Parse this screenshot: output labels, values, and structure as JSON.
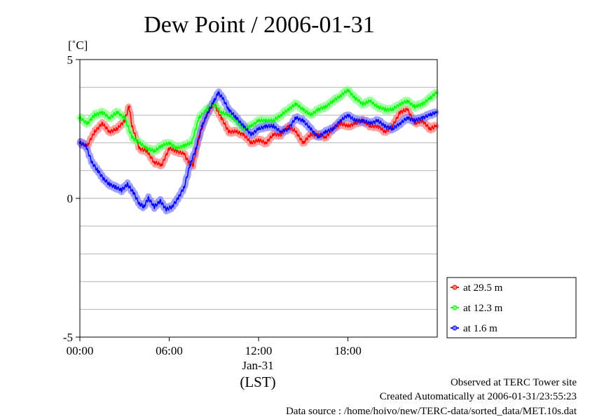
{
  "chart_data": {
    "type": "line",
    "title": "Dew Point / 2006-01-31",
    "ylabel": "[˚C]",
    "ylim": [
      -5,
      5
    ],
    "yticks": [
      {
        "value": 5,
        "label": "5"
      },
      {
        "value": 0,
        "label": "0"
      },
      {
        "value": -5,
        "label": "-5"
      }
    ],
    "xlim": [
      0,
      24
    ],
    "xticks": [
      {
        "value": 0,
        "label": "00:00"
      },
      {
        "value": 6,
        "label": "06:00"
      },
      {
        "value": 12,
        "label": "12:00"
      },
      {
        "value": 18,
        "label": "18:00"
      }
    ],
    "xdate_label": "Jan-31",
    "xlabel": "(LST)",
    "grid": true,
    "legend_position": "lower-right-outside",
    "series": [
      {
        "name": "at 29.5 m",
        "color": "#ff0000",
        "band_color": "#ff8080",
        "x": [
          0,
          0.5,
          1,
          1.5,
          2,
          2.5,
          3,
          3.3,
          3.5,
          4,
          4.5,
          5,
          5.5,
          6,
          6.5,
          7,
          7.3,
          7.6,
          8,
          8.5,
          9,
          9.5,
          10,
          10.5,
          11,
          11.5,
          12,
          12.5,
          13,
          13.5,
          14,
          14.5,
          15,
          15.5,
          16,
          16.5,
          17,
          17.5,
          18,
          18.5,
          19,
          19.5,
          20,
          20.5,
          21,
          21.5,
          22,
          22.5,
          23,
          23.5,
          23.9
        ],
        "y": [
          2.0,
          1.9,
          2.4,
          2.7,
          2.4,
          2.5,
          2.8,
          3.3,
          2.6,
          1.8,
          1.7,
          1.3,
          1.2,
          1.8,
          1.7,
          1.6,
          1.3,
          1.2,
          2.2,
          3.0,
          3.4,
          2.9,
          2.4,
          2.4,
          2.3,
          2.0,
          2.1,
          2.0,
          2.3,
          2.3,
          2.6,
          2.4,
          2.0,
          2.3,
          2.3,
          2.2,
          2.5,
          2.7,
          2.6,
          2.7,
          2.8,
          2.6,
          2.6,
          2.4,
          2.6,
          3.1,
          3.2,
          2.7,
          2.8,
          2.5,
          2.6
        ]
      },
      {
        "name": "at 12.3 m",
        "color": "#00ff00",
        "band_color": "#80ff80",
        "x": [
          0,
          0.5,
          1,
          1.5,
          2,
          2.5,
          3,
          3.5,
          4,
          4.5,
          5,
          5.5,
          6,
          6.5,
          7,
          7.5,
          8,
          8.5,
          9,
          9.5,
          10,
          10.5,
          11,
          11.5,
          12,
          12.5,
          13,
          13.5,
          14,
          14.5,
          15,
          15.5,
          16,
          16.5,
          17,
          17.5,
          18,
          18.5,
          19,
          19.5,
          20,
          20.5,
          21,
          21.5,
          22,
          22.5,
          23,
          23.5,
          23.9
        ],
        "y": [
          2.9,
          2.7,
          3.0,
          3.1,
          2.9,
          3.1,
          2.9,
          2.2,
          2.0,
          1.8,
          1.7,
          1.9,
          2.0,
          1.8,
          1.9,
          2.0,
          2.9,
          3.2,
          3.4,
          3.1,
          3.0,
          2.8,
          2.5,
          2.6,
          2.8,
          2.8,
          2.8,
          3.0,
          3.2,
          3.4,
          3.2,
          3.0,
          3.2,
          3.3,
          3.5,
          3.7,
          3.9,
          3.6,
          3.4,
          3.5,
          3.3,
          3.2,
          3.2,
          3.4,
          3.5,
          3.3,
          3.4,
          3.6,
          3.8
        ]
      },
      {
        "name": "at 1.6 m",
        "color": "#0000ff",
        "band_color": "#8080ff",
        "x": [
          0,
          0.4,
          0.8,
          1.2,
          1.6,
          2,
          2.4,
          2.8,
          3.2,
          3.6,
          4,
          4.3,
          4.6,
          5,
          5.4,
          5.8,
          6.2,
          6.6,
          7,
          7.4,
          7.8,
          8.2,
          8.6,
          9,
          9.3,
          9.6,
          10,
          10.5,
          11,
          11.5,
          12,
          12.5,
          13,
          13.5,
          14,
          14.5,
          15,
          15.5,
          16,
          16.5,
          17,
          17.5,
          18,
          18.5,
          19,
          19.5,
          20,
          20.5,
          21,
          21.5,
          22,
          22.5,
          23,
          23.5,
          23.9
        ],
        "y": [
          2.0,
          1.9,
          1.3,
          1.0,
          0.7,
          0.5,
          0.4,
          0.3,
          0.5,
          0.2,
          -0.2,
          -0.3,
          0.0,
          -0.3,
          -0.1,
          -0.4,
          -0.3,
          0.0,
          0.4,
          1.2,
          1.8,
          2.6,
          3.1,
          3.5,
          3.8,
          3.6,
          3.2,
          2.9,
          2.6,
          2.3,
          2.5,
          2.6,
          2.6,
          2.4,
          2.5,
          2.9,
          2.8,
          2.5,
          2.2,
          2.4,
          2.5,
          2.8,
          3.0,
          2.8,
          2.8,
          2.7,
          2.8,
          2.6,
          2.5,
          2.7,
          2.9,
          2.8,
          2.9,
          3.0,
          3.1
        ]
      }
    ]
  },
  "footer": {
    "line1": "Observed at TERC Tower site",
    "line2": "Created Automatically at 2006-01-31/23:55:23",
    "line3": "Data source : /home/hoivo/new/TERC-data/sorted_data/MET.10s.dat"
  }
}
